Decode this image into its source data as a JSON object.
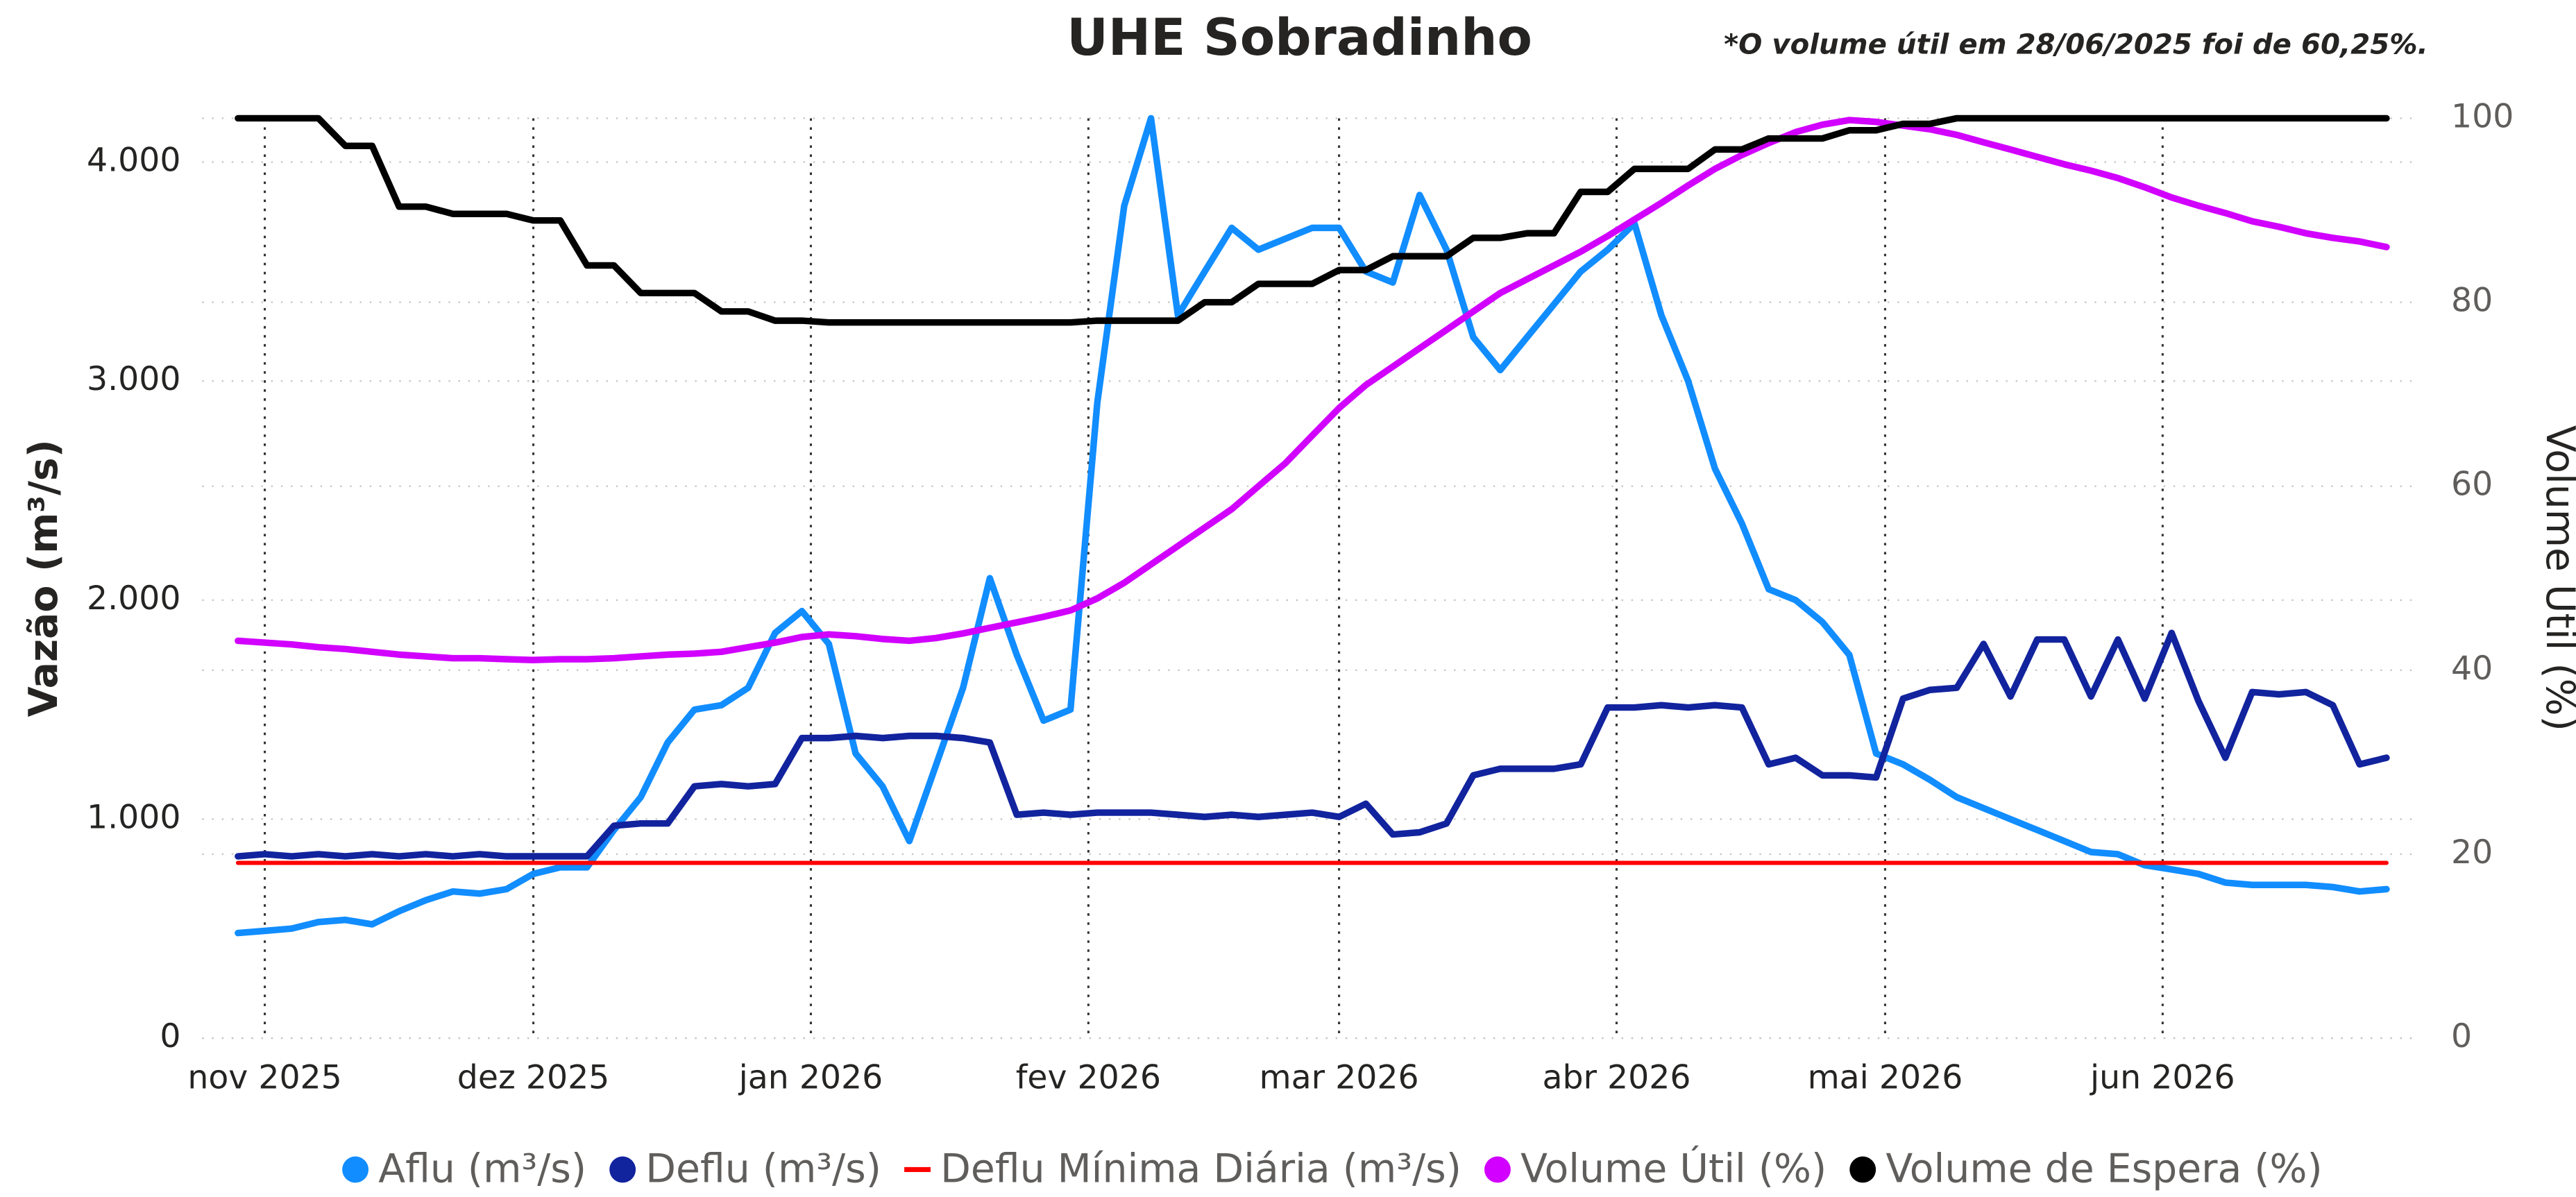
{
  "chart_data": {
    "type": "line",
    "title": "UHE Sobradinho",
    "annotation": "*O volume útil em 28/06/2025 foi de 60,25%.",
    "y_label": "Vazão (m³/s)",
    "y2_label": "Volume Útil (%)",
    "grid": true,
    "legend": "bottom",
    "xlim": [
      -7,
      240
    ],
    "xticks": [
      {
        "value": 0,
        "label": "nov 2025"
      },
      {
        "value": 30,
        "label": "dez 2025"
      },
      {
        "value": 61,
        "label": "jan 2026"
      },
      {
        "value": 92,
        "label": "fev 2026"
      },
      {
        "value": 120,
        "label": "mar 2026"
      },
      {
        "value": 151,
        "label": "abr 2026"
      },
      {
        "value": 181,
        "label": "mai 2026"
      },
      {
        "value": 212,
        "label": "jun 2026"
      }
    ],
    "ylim": [
      0,
      4200
    ],
    "yticks": [
      0,
      {
        "value": 1000,
        "label": "1.000"
      },
      {
        "value": 2000,
        "label": "2.000"
      },
      {
        "value": 3000,
        "label": "3.000"
      },
      {
        "value": 4000,
        "label": "4.000"
      }
    ],
    "y2lim": [
      0,
      100
    ],
    "y2ticks": [
      0,
      20,
      40,
      60,
      80,
      100
    ],
    "x": [
      -3,
      0,
      3,
      6,
      9,
      12,
      15,
      18,
      21,
      24,
      27,
      30,
      33,
      36,
      39,
      42,
      45,
      48,
      51,
      54,
      57,
      60,
      63,
      66,
      69,
      72,
      75,
      78,
      81,
      84,
      87,
      90,
      93,
      96,
      99,
      102,
      105,
      108,
      111,
      114,
      117,
      120,
      123,
      126,
      129,
      132,
      135,
      138,
      141,
      144,
      147,
      150,
      153,
      156,
      159,
      162,
      165,
      168,
      171,
      174,
      177,
      180,
      183,
      186,
      189,
      192,
      195,
      198,
      201,
      204,
      207,
      210,
      213,
      216,
      219,
      222,
      225,
      228,
      231,
      234,
      237
    ],
    "series": [
      {
        "name": "Aflu (m³/s)",
        "color": "#118dff",
        "values": [
          480,
          490,
          500,
          530,
          540,
          520,
          580,
          630,
          670,
          660,
          680,
          750,
          780,
          780,
          950,
          1100,
          1350,
          1500,
          1520,
          1600,
          1850,
          1950,
          1800,
          1300,
          1150,
          900,
          1250,
          1600,
          2100,
          1750,
          1450,
          1500,
          2900,
          3800,
          4200,
          3300,
          3500,
          3700,
          3600,
          3650,
          3700,
          3700,
          3500,
          3450,
          3850,
          3600,
          3200,
          3050,
          3200,
          3350,
          3500,
          3600,
          3720,
          3300,
          3000,
          2600,
          2350,
          2050,
          2000,
          1900,
          1750,
          1300,
          1250,
          1180,
          1100,
          1050,
          1000,
          950,
          900,
          850,
          840,
          790,
          770,
          750,
          710,
          700,
          700,
          700,
          690,
          670,
          680
        ]
      },
      {
        "name": "Deflu (m³/s)",
        "color": "#12239e",
        "values": [
          830,
          840,
          830,
          840,
          830,
          840,
          830,
          840,
          830,
          840,
          830,
          830,
          830,
          830,
          970,
          980,
          980,
          1150,
          1160,
          1150,
          1160,
          1370,
          1370,
          1380,
          1370,
          1380,
          1380,
          1370,
          1350,
          1020,
          1030,
          1020,
          1030,
          1030,
          1030,
          1020,
          1010,
          1020,
          1010,
          1020,
          1030,
          1010,
          1070,
          930,
          940,
          980,
          1200,
          1230,
          1230,
          1230,
          1250,
          1510,
          1510,
          1520,
          1510,
          1520,
          1510,
          1250,
          1280,
          1200,
          1200,
          1190,
          1550,
          1590,
          1600,
          1800,
          1560,
          1820,
          1820,
          1560,
          1820,
          1550,
          1850,
          1540,
          1280,
          1580,
          1570,
          1580,
          1520,
          1250,
          1280
        ]
      },
      {
        "name": "Deflu Mínima Diária (m³/s)",
        "color": "#ff0000",
        "legend_symbol": "line",
        "values": [
          800,
          800,
          800,
          800,
          800,
          800,
          800,
          800,
          800,
          800,
          800,
          800,
          800,
          800,
          800,
          800,
          800,
          800,
          800,
          800,
          800,
          800,
          800,
          800,
          800,
          800,
          800,
          800,
          800,
          800,
          800,
          800,
          800,
          800,
          800,
          800,
          800,
          800,
          800,
          800,
          800,
          800,
          800,
          800,
          800,
          800,
          800,
          800,
          800,
          800,
          800,
          800,
          800,
          800,
          800,
          800,
          800,
          800,
          800,
          800,
          800,
          800,
          800,
          800,
          800,
          800,
          800,
          800,
          800,
          800,
          800,
          800,
          800,
          800,
          800,
          800,
          800,
          800,
          800,
          800,
          800
        ]
      },
      {
        "name": "Volume Útil (%)",
        "color": "#d100ff",
        "axis": "y2",
        "values": [
          43.2,
          43,
          42.8,
          42.5,
          42.3,
          42,
          41.7,
          41.5,
          41.3,
          41.3,
          41.2,
          41.1,
          41.2,
          41.2,
          41.3,
          41.5,
          41.7,
          41.8,
          42,
          42.5,
          43,
          43.6,
          43.9,
          43.7,
          43.4,
          43.2,
          43.5,
          44,
          44.6,
          45.2,
          45.8,
          46.5,
          47.8,
          49.5,
          51.5,
          53.5,
          55.5,
          57.5,
          60,
          62.5,
          65.5,
          68.5,
          71,
          73,
          75,
          77,
          79,
          81,
          82.5,
          84,
          85.5,
          87.2,
          89,
          90.8,
          92.7,
          94.5,
          96,
          97.3,
          98.5,
          99.3,
          99.8,
          99.6,
          99.2,
          98.8,
          98.2,
          97.4,
          96.6,
          95.8,
          95,
          94.3,
          93.5,
          92.5,
          91.4,
          90.5,
          89.7,
          88.8,
          88.2,
          87.5,
          87,
          86.6,
          86
        ]
      },
      {
        "name": "Volume de Espera (%)",
        "color": "#000000",
        "axis": "y2",
        "values": [
          100,
          100,
          100,
          100,
          97,
          97,
          90.4,
          90.4,
          89.6,
          89.6,
          89.6,
          88.9,
          88.9,
          84,
          84,
          81,
          81,
          81,
          79,
          79,
          78,
          78,
          77.8,
          77.8,
          77.8,
          77.8,
          77.8,
          77.8,
          77.8,
          77.8,
          77.8,
          77.8,
          78,
          78,
          78,
          78,
          80,
          80,
          82,
          82,
          82,
          83.5,
          83.5,
          85,
          85,
          85,
          87,
          87,
          87.5,
          87.5,
          92,
          92,
          94.5,
          94.5,
          94.5,
          96.6,
          96.6,
          97.8,
          97.8,
          97.8,
          98.7,
          98.7,
          99.4,
          99.4,
          100,
          100,
          100,
          100,
          100,
          100,
          100,
          100,
          100,
          100,
          100,
          100,
          100,
          100,
          100,
          100,
          100
        ]
      }
    ]
  }
}
